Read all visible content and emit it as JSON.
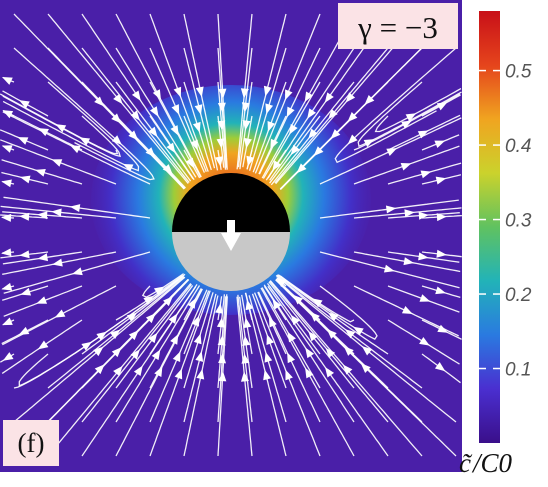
{
  "chart_data": {
    "type": "heatmap",
    "panel_label": "(f)",
    "parameter_label": "γ = −3",
    "colorbar": {
      "label_numerator": "c̃",
      "label_denominator": "C0",
      "ticks": [
        "0.1",
        "0.2",
        "0.3",
        "0.4",
        "0.5"
      ],
      "tick_values": [
        0.1,
        0.2,
        0.3,
        0.4,
        0.5
      ],
      "range": [
        0.0,
        0.58
      ],
      "colors": [
        "#3a0f8a",
        "#4a2fd0",
        "#2a7ae0",
        "#22b3b8",
        "#60c260",
        "#cbd22c",
        "#f0a420",
        "#e5441c",
        "#c81018"
      ]
    },
    "particle": {
      "top_color": "#000000",
      "bottom_color": "#c8c8c8",
      "arrow_direction": "down"
    },
    "streamline_color": "#ffffff",
    "background_color": "#4a1fa8"
  }
}
